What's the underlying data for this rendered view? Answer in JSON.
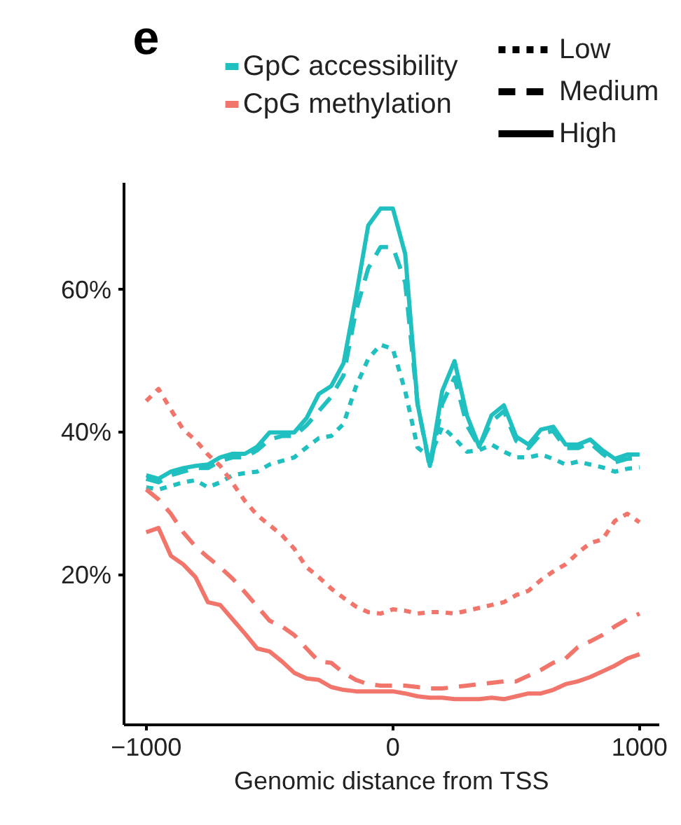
{
  "chart_data": {
    "type": "line",
    "title": "e",
    "xlabel": "Genomic distance from TSS",
    "x": [
      -1000,
      -950,
      -900,
      -850,
      -800,
      -750,
      -700,
      -650,
      -600,
      -550,
      -500,
      -450,
      -400,
      -350,
      -300,
      -250,
      -200,
      -150,
      -100,
      -50,
      0,
      50,
      100,
      150,
      200,
      250,
      300,
      350,
      400,
      450,
      500,
      550,
      600,
      650,
      700,
      750,
      800,
      850,
      900,
      950,
      1000
    ],
    "series": [
      {
        "name": "GpC accessibility",
        "color": "#20bfc0",
        "line_style": "dotted",
        "values": [
          32.3,
          32,
          32.5,
          33,
          33.3,
          32.3,
          33,
          34,
          34.3,
          34.5,
          35.5,
          36,
          36.5,
          37.9,
          39.2,
          39.5,
          41.2,
          46.4,
          50.3,
          52.3,
          51.7,
          45.8,
          37.9,
          36.5,
          40.8,
          39.2,
          37.3,
          37.5,
          38.3,
          37.3,
          36.5,
          36.5,
          36.9,
          36.3,
          35.5,
          35.9,
          35.5,
          35.1,
          34.5,
          34.9,
          35.1
        ]
      },
      {
        "color": "#20bfc0",
        "line_style": "dashed",
        "values": [
          33.5,
          33,
          34,
          34.5,
          35,
          35,
          36,
          36.5,
          36.5,
          37.5,
          39,
          39.5,
          39.5,
          41,
          43,
          45,
          48,
          57,
          63,
          66,
          66,
          61,
          44,
          35,
          44,
          47.7,
          41,
          38,
          41.5,
          43,
          38.8,
          37.8,
          39.8,
          40.2,
          37.8,
          37.8,
          38.5,
          37,
          35.8,
          36.3,
          36.4
        ]
      },
      {
        "color": "#20bfc0",
        "line_style": "solid",
        "values": [
          34,
          33.5,
          34.5,
          35,
          35.3,
          35.5,
          36.5,
          37,
          37,
          38,
          40,
          40,
          40,
          42,
          45.4,
          46.5,
          49.7,
          59,
          69,
          71.4,
          71.4,
          65,
          44,
          35.3,
          45.8,
          50,
          42.4,
          38,
          42.4,
          43.8,
          39.4,
          38.3,
          40.4,
          40.8,
          38.3,
          38.3,
          39,
          37.5,
          36.3,
          36.9,
          36.9
        ]
      },
      {
        "name": "CpG methylation",
        "color": "#f2756b",
        "line_style": "dotted",
        "values": [
          44.4,
          46.1,
          43.2,
          40.4,
          38.9,
          36.9,
          35.3,
          32.9,
          30.4,
          28.4,
          27,
          25.6,
          23.7,
          21.1,
          19.7,
          18.1,
          16.8,
          15.6,
          14.8,
          14.6,
          15.2,
          15,
          14.6,
          14.8,
          14.8,
          14.6,
          15,
          15.4,
          15.8,
          16.2,
          17.2,
          17.8,
          19.3,
          20.5,
          21.5,
          23.1,
          24.5,
          25,
          27.6,
          28.6,
          27.4
        ]
      },
      {
        "color": "#f2756b",
        "line_style": "dashed",
        "values": [
          32,
          30.6,
          28.6,
          26,
          24,
          22.5,
          21.1,
          19.5,
          17.6,
          15.6,
          13.6,
          12.8,
          11.6,
          9.7,
          7.9,
          7.7,
          6.3,
          5.3,
          4.7,
          4.5,
          4.5,
          4.5,
          4.3,
          4.1,
          4.1,
          4.3,
          4.5,
          4.7,
          4.9,
          5.1,
          5.1,
          5.9,
          6.7,
          7.7,
          8.3,
          9.9,
          10.7,
          11.6,
          12.8,
          13.8,
          14.6
        ]
      },
      {
        "color": "#f2756b",
        "line_style": "solid",
        "values": [
          26,
          26.6,
          22.7,
          21.5,
          19.7,
          16.2,
          15.8,
          13.8,
          11.8,
          9.7,
          9.3,
          7.9,
          6.3,
          5.5,
          5.3,
          4.3,
          3.9,
          3.7,
          3.7,
          3.7,
          3.7,
          3.4,
          3,
          2.8,
          2.8,
          2.6,
          2.6,
          2.6,
          2.8,
          2.6,
          3,
          3.4,
          3.4,
          3.9,
          4.7,
          5.1,
          5.7,
          6.5,
          7.3,
          8.3,
          8.9
        ]
      }
    ],
    "annotations": [
      "Low",
      "Medium",
      "High"
    ],
    "xlim": [
      -1090,
      1080
    ],
    "ylim": [
      -1,
      75
    ],
    "xticks": [
      -1000,
      0,
      1000
    ],
    "yticks": [
      {
        "value": 20,
        "label": "20%"
      },
      {
        "value": 40,
        "label": "40%"
      },
      {
        "value": 60,
        "label": "60%"
      }
    ],
    "grid": false,
    "legend": "top"
  }
}
